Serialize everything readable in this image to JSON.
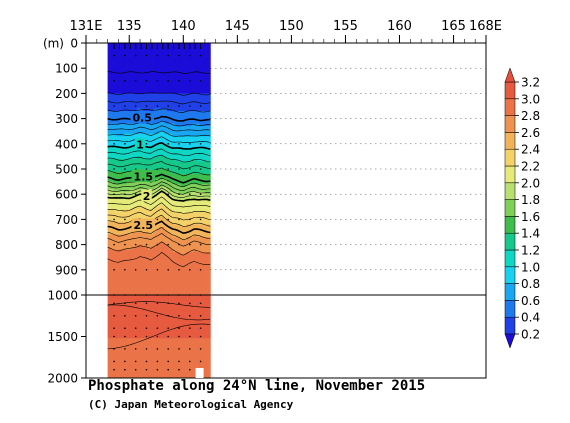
{
  "chart_data": {
    "type": "heatmap",
    "title": "Phosphate along 24°N line, November 2015",
    "credit": "(C) Japan Meteorological Agency",
    "x_tick_labels": [
      "131E",
      "135",
      "140",
      "145",
      "150",
      "155",
      "160",
      "165",
      "168E"
    ],
    "x_tick_values": [
      131,
      135,
      140,
      145,
      150,
      155,
      160,
      165,
      168
    ],
    "xlim": [
      131,
      168
    ],
    "y_unit_label": "(m)",
    "y_tick_labels_upper": [
      "0",
      "100",
      "200",
      "300",
      "400",
      "500",
      "600",
      "700",
      "800",
      "900",
      "1000"
    ],
    "y_tick_values_upper": [
      0,
      100,
      200,
      300,
      400,
      500,
      600,
      700,
      800,
      900,
      1000
    ],
    "y_tick_labels_lower": [
      "1500",
      "2000"
    ],
    "y_tick_values_lower": [
      1500,
      2000
    ],
    "ylim": [
      0,
      2000
    ],
    "y_break_at": 1000,
    "section_lon_range": [
      133,
      142.5
    ],
    "station_lons": [
      133.6,
      134.1,
      134.6,
      135.1,
      135.6,
      136.1,
      136.6,
      137.1,
      137.6,
      138.1,
      138.6,
      139.1,
      139.6,
      140.1,
      140.6,
      141.1,
      141.6
    ],
    "contour_labels": [
      {
        "text": "0.5",
        "lon": 136.2,
        "depth": 300
      },
      {
        "text": "1",
        "lon": 136.0,
        "depth": 410
      },
      {
        "text": "1.5",
        "lon": 136.3,
        "depth": 535
      },
      {
        "text": "2",
        "lon": 136.6,
        "depth": 610
      },
      {
        "text": "2.5",
        "lon": 136.3,
        "depth": 730
      }
    ],
    "colorbar": {
      "levels": [
        0.2,
        0.4,
        0.6,
        0.8,
        1.0,
        1.2,
        1.4,
        1.6,
        1.8,
        2.0,
        2.2,
        2.4,
        2.6,
        2.8,
        3.0,
        3.2
      ],
      "labels": [
        "0.2",
        "0.4",
        "0.6",
        "0.8",
        "1.0",
        "1.2",
        "1.4",
        "1.6",
        "1.8",
        "2.0",
        "2.2",
        "2.4",
        "2.6",
        "2.8",
        "3.0",
        "3.2"
      ],
      "colors": [
        "#2040e8",
        "#1e78ee",
        "#1aa6f0",
        "#18d2f0",
        "#10d6c4",
        "#16c88a",
        "#3ebc4c",
        "#7ed05a",
        "#b8e070",
        "#e6ea78",
        "#f4d26a",
        "#f2b45a",
        "#ee9450",
        "#ea7448",
        "#e65a40",
        "#e64a3c"
      ],
      "below_color": "#1c0cd8",
      "above_color": "#e4503a"
    },
    "depth_profile": [
      {
        "depth": 0,
        "value": 0.05
      },
      {
        "depth": 100,
        "value": 0.08
      },
      {
        "depth": 200,
        "value": 0.2
      },
      {
        "depth": 250,
        "value": 0.35
      },
      {
        "depth": 300,
        "value": 0.5
      },
      {
        "depth": 350,
        "value": 0.75
      },
      {
        "depth": 410,
        "value": 1.0
      },
      {
        "depth": 470,
        "value": 1.25
      },
      {
        "depth": 535,
        "value": 1.5
      },
      {
        "depth": 575,
        "value": 1.75
      },
      {
        "depth": 610,
        "value": 2.0
      },
      {
        "depth": 670,
        "value": 2.25
      },
      {
        "depth": 730,
        "value": 2.5
      },
      {
        "depth": 790,
        "value": 2.75
      },
      {
        "depth": 880,
        "value": 2.95
      },
      {
        "depth": 1000,
        "value": 3.0
      },
      {
        "depth": 1200,
        "value": 3.05
      },
      {
        "depth": 1500,
        "value": 3.0
      },
      {
        "depth": 1800,
        "value": 2.95
      },
      {
        "depth": 2000,
        "value": 2.95
      }
    ],
    "thermocline_anomaly": [
      {
        "lon": 133.0,
        "offset": 0
      },
      {
        "lon": 134.0,
        "offset": 10
      },
      {
        "lon": 135.0,
        "offset": 5
      },
      {
        "lon": 136.0,
        "offset": -10
      },
      {
        "lon": 137.0,
        "offset": 5
      },
      {
        "lon": 138.0,
        "offset": -25
      },
      {
        "lon": 139.0,
        "offset": 10
      },
      {
        "lon": 140.0,
        "offset": 25
      },
      {
        "lon": 141.0,
        "offset": 10
      },
      {
        "lon": 142.5,
        "offset": 20
      }
    ]
  }
}
